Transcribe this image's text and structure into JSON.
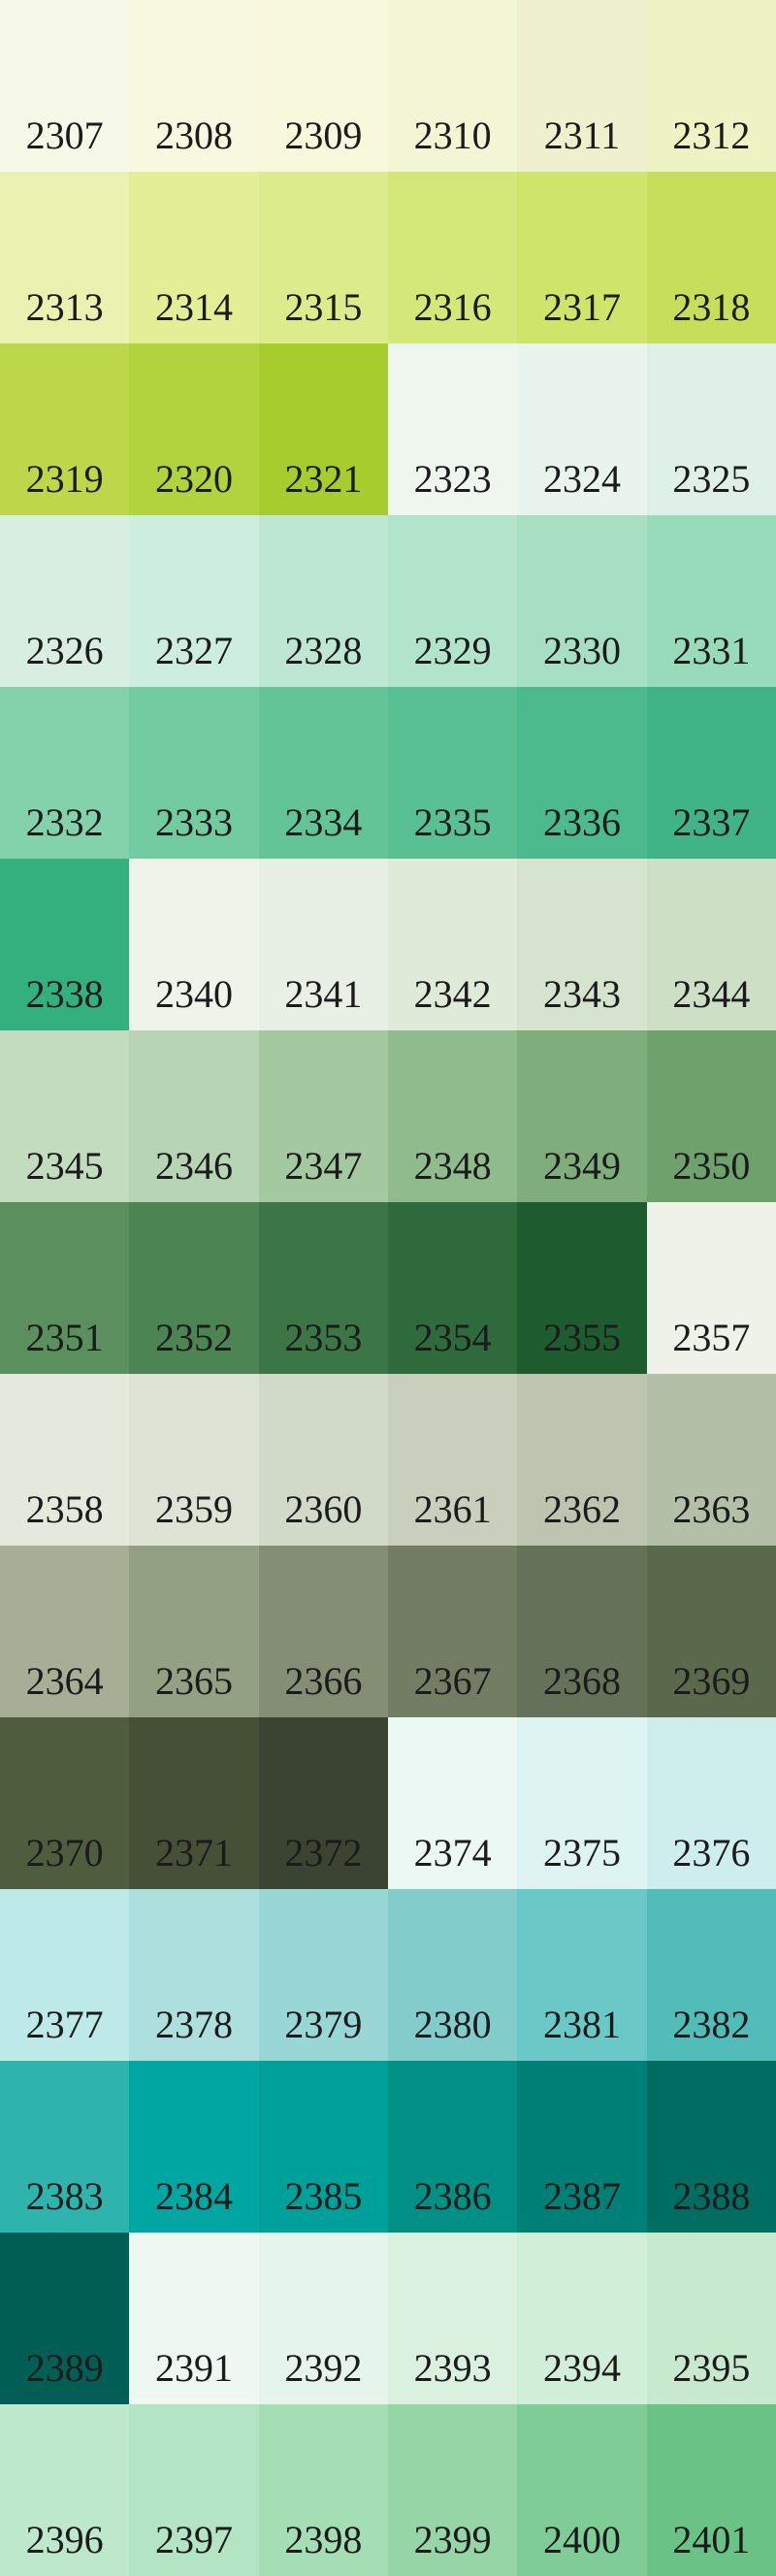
{
  "swatches": [
    {
      "label": "2307",
      "color": "#f7f9e8"
    },
    {
      "label": "2308",
      "color": "#f6f8e0"
    },
    {
      "label": "2309",
      "color": "#f8f8dc"
    },
    {
      "label": "2310",
      "color": "#f3f6d5"
    },
    {
      "label": "2311",
      "color": "#eff0cd"
    },
    {
      "label": "2312",
      "color": "#eef3c3"
    },
    {
      "label": "2313",
      "color": "#e9f2b0"
    },
    {
      "label": "2314",
      "color": "#e2ef97"
    },
    {
      "label": "2315",
      "color": "#dcec8c"
    },
    {
      "label": "2316",
      "color": "#d4e87a"
    },
    {
      "label": "2317",
      "color": "#cfe46a"
    },
    {
      "label": "2318",
      "color": "#c6de5a"
    },
    {
      "label": "2319",
      "color": "#bcd84a"
    },
    {
      "label": "2320",
      "color": "#b1d33e"
    },
    {
      "label": "2321",
      "color": "#a6cc2e"
    },
    {
      "label": "2323",
      "color": "#eef6ee"
    },
    {
      "label": "2324",
      "color": "#e8f4ec"
    },
    {
      "label": "2325",
      "color": "#dff1e6"
    },
    {
      "label": "2326",
      "color": "#d8eee1"
    },
    {
      "label": "2327",
      "color": "#cdeedf"
    },
    {
      "label": "2328",
      "color": "#bde7d3"
    },
    {
      "label": "2329",
      "color": "#b2e4cc"
    },
    {
      "label": "2330",
      "color": "#a6dfc4"
    },
    {
      "label": "2331",
      "color": "#97dbba"
    },
    {
      "label": "2332",
      "color": "#84d2ac"
    },
    {
      "label": "2333",
      "color": "#72cba1"
    },
    {
      "label": "2334",
      "color": "#62c497"
    },
    {
      "label": "2335",
      "color": "#58c093"
    },
    {
      "label": "2336",
      "color": "#4cba8d"
    },
    {
      "label": "2337",
      "color": "#40b487"
    },
    {
      "label": "2338",
      "color": "#34af7e"
    },
    {
      "label": "2340",
      "color": "#eef4ea"
    },
    {
      "label": "2341",
      "color": "#e8efe4"
    },
    {
      "label": "2342",
      "color": "#e0ead9"
    },
    {
      "label": "2343",
      "color": "#d6e4cf"
    },
    {
      "label": "2344",
      "color": "#cde0c6"
    },
    {
      "label": "2345",
      "color": "#c3dbbe"
    },
    {
      "label": "2346",
      "color": "#b7d4b4"
    },
    {
      "label": "2347",
      "color": "#a4c8a0"
    },
    {
      "label": "2348",
      "color": "#90bb8c"
    },
    {
      "label": "2349",
      "color": "#80ad7c"
    },
    {
      "label": "2350",
      "color": "#6fa16d"
    },
    {
      "label": "2351",
      "color": "#5b8f5d"
    },
    {
      "label": "2352",
      "color": "#4d8454"
    },
    {
      "label": "2353",
      "color": "#3c7646"
    },
    {
      "label": "2354",
      "color": "#2f6a3c"
    },
    {
      "label": "2355",
      "color": "#1e5b2e"
    },
    {
      "label": "2357",
      "color": "#eef2e8"
    },
    {
      "label": "2358",
      "color": "#e4e9dd"
    },
    {
      "label": "2359",
      "color": "#dde4d6"
    },
    {
      "label": "2360",
      "color": "#d1d9c9"
    },
    {
      "label": "2361",
      "color": "#c9cfbd"
    },
    {
      "label": "2362",
      "color": "#bdc5b0"
    },
    {
      "label": "2363",
      "color": "#b3bfa6"
    },
    {
      "label": "2364",
      "color": "#a6ae96"
    },
    {
      "label": "2365",
      "color": "#94a084"
    },
    {
      "label": "2366",
      "color": "#848e74"
    },
    {
      "label": "2367",
      "color": "#737d63"
    },
    {
      "label": "2368",
      "color": "#66715a"
    },
    {
      "label": "2369",
      "color": "#5a684c"
    },
    {
      "label": "2370",
      "color": "#4f5c3e"
    },
    {
      "label": "2371",
      "color": "#465037"
    },
    {
      "label": "2372",
      "color": "#3b4430"
    },
    {
      "label": "2374",
      "color": "#ecf8f3"
    },
    {
      "label": "2375",
      "color": "#def4f2"
    },
    {
      "label": "2376",
      "color": "#cdeeec"
    },
    {
      "label": "2377",
      "color": "#bde9e8"
    },
    {
      "label": "2378",
      "color": "#addfde"
    },
    {
      "label": "2379",
      "color": "#98d7d6"
    },
    {
      "label": "2380",
      "color": "#82cdcc"
    },
    {
      "label": "2381",
      "color": "#6ac8c6"
    },
    {
      "label": "2382",
      "color": "#52bcb9"
    },
    {
      "label": "2383",
      "color": "#2eb3ad"
    },
    {
      "label": "2384",
      "color": "#00a6a1"
    },
    {
      "label": "2385",
      "color": "#00a09a"
    },
    {
      "label": "2386",
      "color": "#009086"
    },
    {
      "label": "2387",
      "color": "#007f76"
    },
    {
      "label": "2388",
      "color": "#006d62"
    },
    {
      "label": "2389",
      "color": "#005e55"
    },
    {
      "label": "2391",
      "color": "#eef8f1"
    },
    {
      "label": "2392",
      "color": "#e6f5eb"
    },
    {
      "label": "2393",
      "color": "#daf1e0"
    },
    {
      "label": "2394",
      "color": "#d1eed8"
    },
    {
      "label": "2395",
      "color": "#c7eacf"
    },
    {
      "label": "2396",
      "color": "#bde8cc"
    },
    {
      "label": "2397",
      "color": "#b3e4c4"
    },
    {
      "label": "2398",
      "color": "#a5ddb5"
    },
    {
      "label": "2399",
      "color": "#95d5a6"
    },
    {
      "label": "2400",
      "color": "#80cc97"
    },
    {
      "label": "2401",
      "color": "#6bc286"
    }
  ]
}
